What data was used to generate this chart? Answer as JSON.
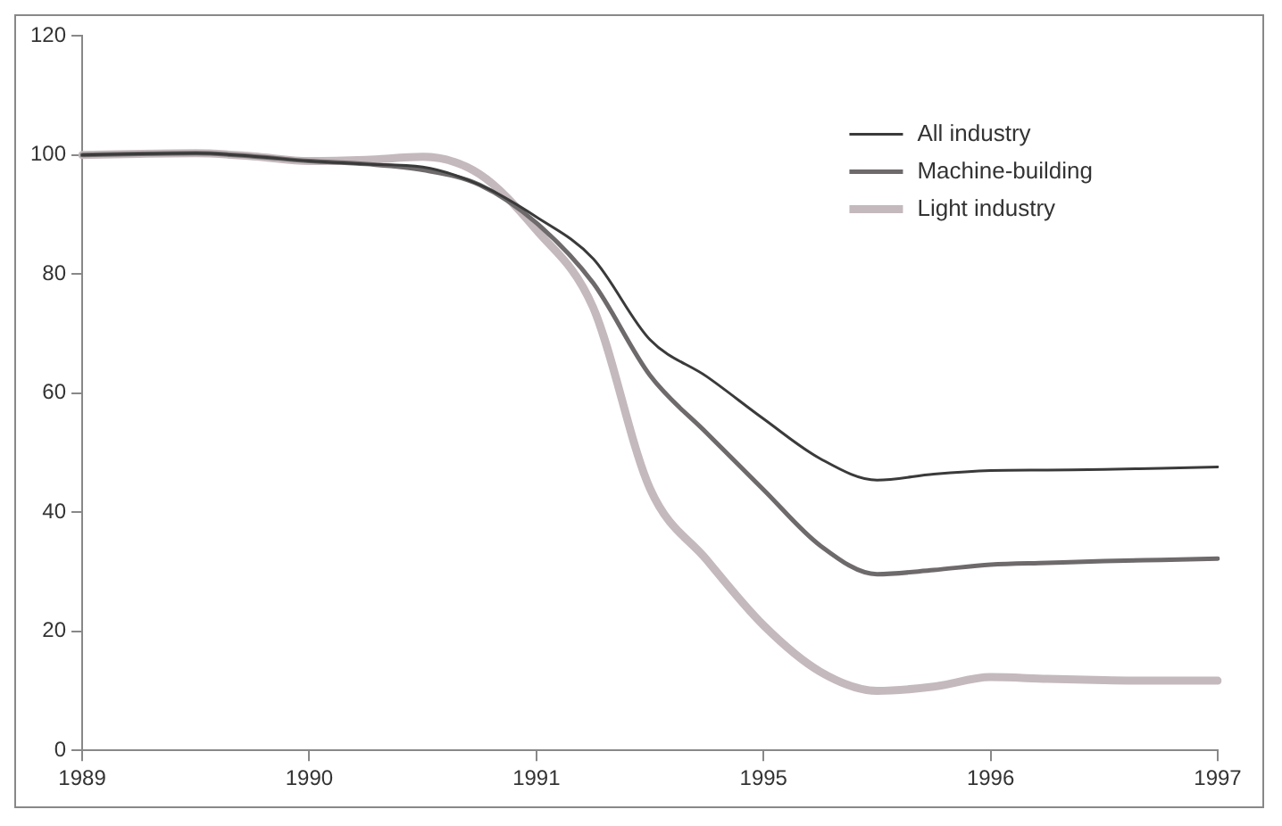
{
  "chart_data": {
    "type": "line",
    "categories": [
      "1989",
      null,
      null,
      null,
      "1990",
      null,
      null,
      null,
      "1991",
      null,
      null,
      null,
      "1995",
      null,
      null,
      null,
      "1996",
      null,
      null,
      null,
      "1997"
    ],
    "series": [
      {
        "name": "All industry",
        "color": "#3a3a3a",
        "values": [
          100,
          100.2,
          100.3,
          99.8,
          99,
          98.5,
          98,
          95,
          89.6,
          82.6,
          69,
          62.8,
          55.7,
          49,
          45.4,
          46.4,
          47,
          47.1,
          47.2,
          47.4,
          47.6
        ]
      },
      {
        "name": "Machine-building",
        "color": "#6e6a6c",
        "values": [
          100,
          100.2,
          100.3,
          99.8,
          99,
          98.5,
          97.5,
          95,
          88.6,
          78.5,
          63,
          53.3,
          43.8,
          34.4,
          29.6,
          30.3,
          31.2,
          31.5,
          31.8,
          32,
          32.2
        ]
      },
      {
        "name": "Light industry",
        "color": "#c4b9bc",
        "values": [
          100,
          100.2,
          100.3,
          99.8,
          99,
          99.2,
          99.7,
          96.8,
          87.4,
          74.4,
          44,
          32,
          21,
          13.2,
          10,
          10.7,
          12.3,
          12,
          11.8,
          11.7,
          11.7
        ]
      }
    ],
    "ylim": [
      0,
      120
    ],
    "yticks": [
      0,
      20,
      40,
      60,
      80,
      100,
      120
    ],
    "grid": false,
    "legend": "top right",
    "marker": "none",
    "line_style": "solid"
  }
}
